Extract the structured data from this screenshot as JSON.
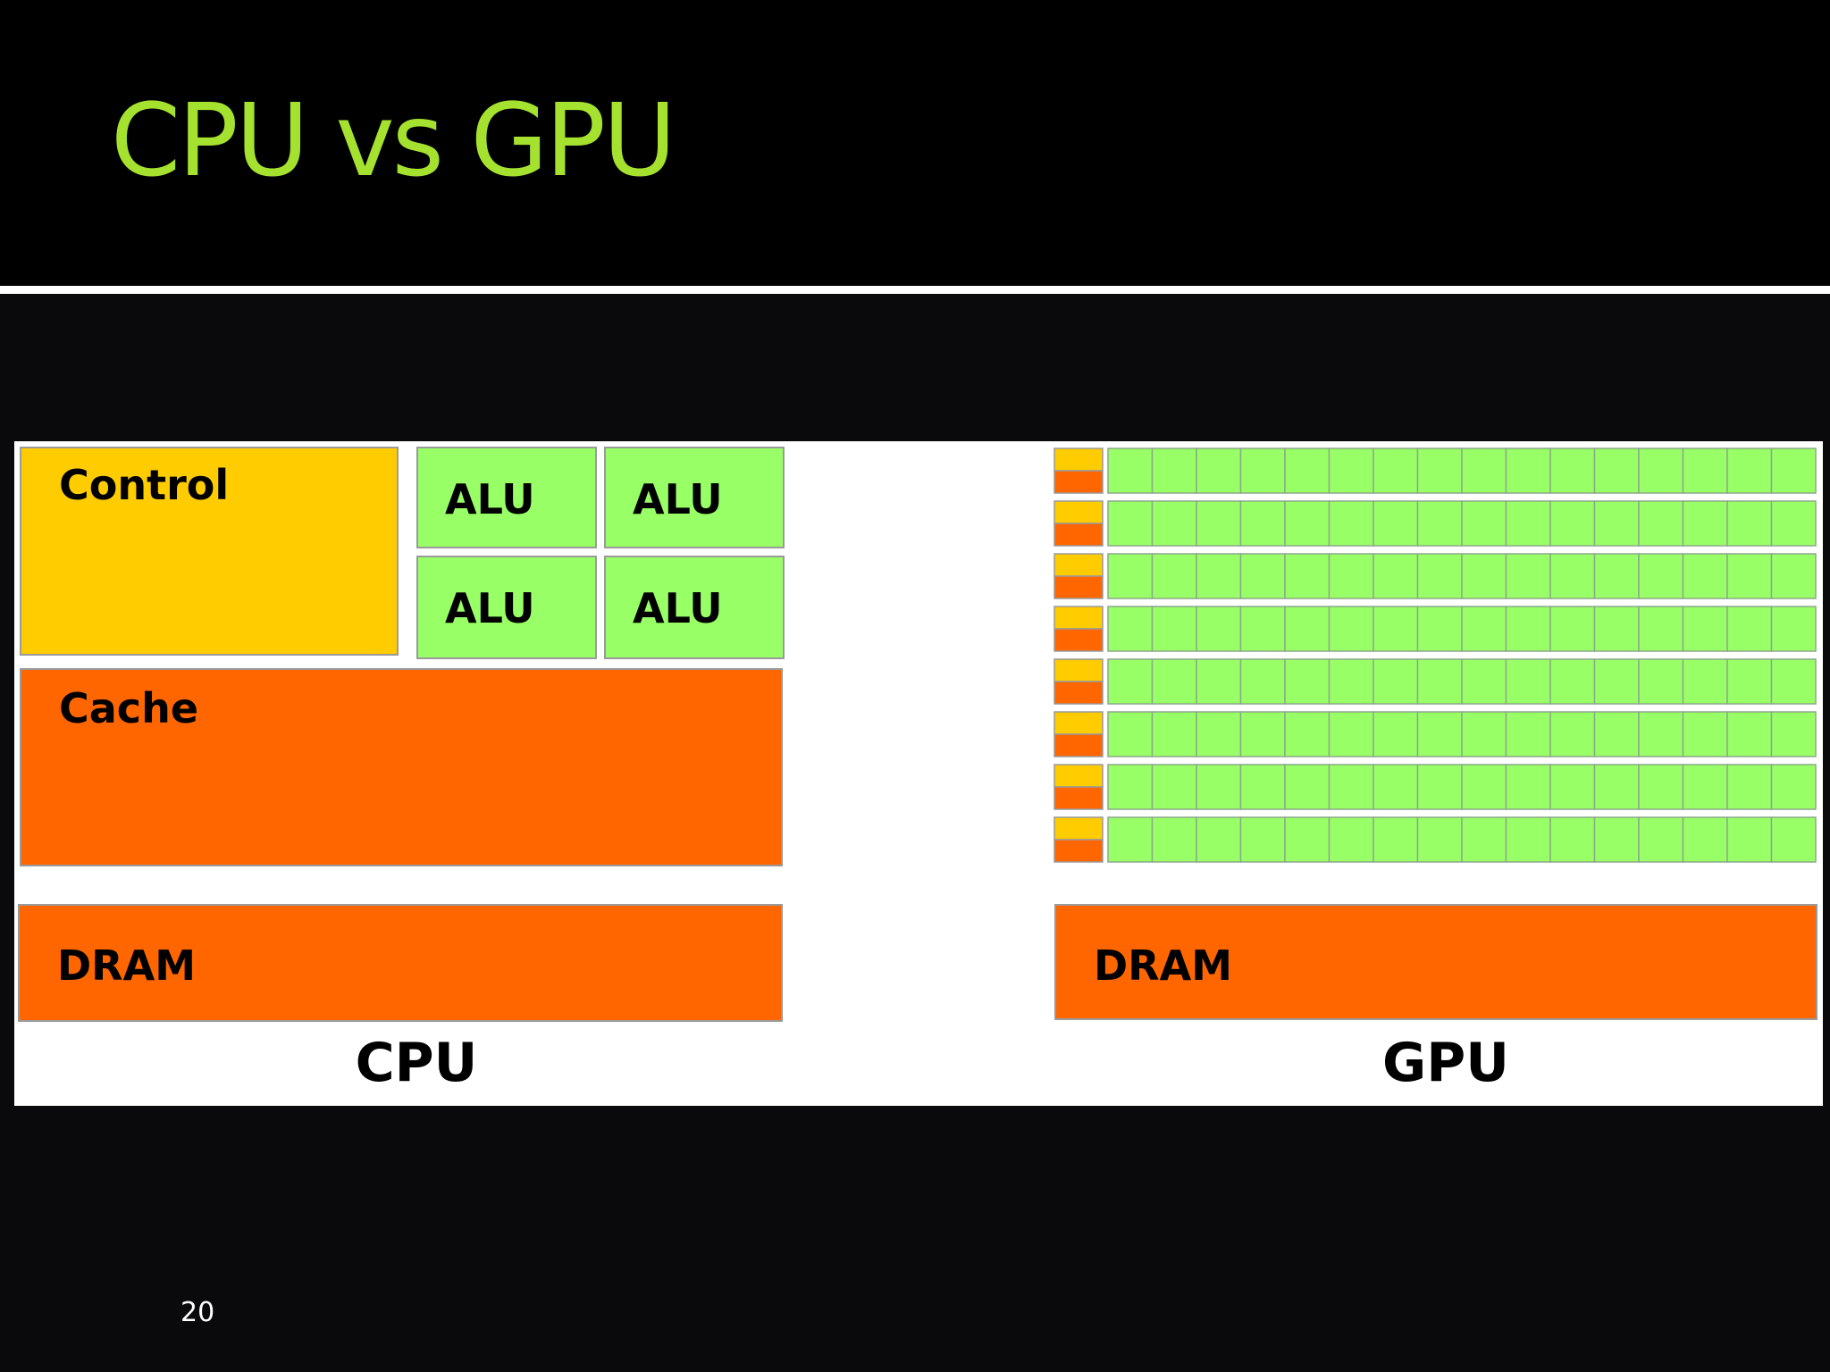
{
  "slide": {
    "title": "CPU vs GPU",
    "page_number": "20",
    "colors": {
      "title": "#a5e22f",
      "control": "#ffcc00",
      "alu": "#99ff66",
      "cache": "#ff6600",
      "dram": "#ff6600"
    }
  },
  "cpu": {
    "label": "CPU",
    "control_label": "Control",
    "alu_labels": [
      "ALU",
      "ALU",
      "ALU",
      "ALU"
    ],
    "cache_label": "Cache",
    "dram_label": "DRAM"
  },
  "gpu": {
    "label": "GPU",
    "dram_label": "DRAM",
    "rows": 8,
    "alus_per_row": 16
  }
}
